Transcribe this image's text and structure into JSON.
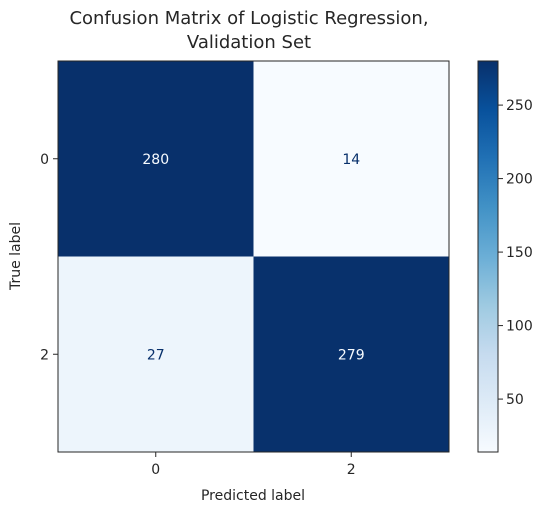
{
  "chart_data": {
    "type": "heatmap",
    "title": "Confusion Matrix of Logistic Regression,\nValidation Set",
    "title_lines": [
      "Confusion Matrix of Logistic Regression,",
      "Validation Set"
    ],
    "xlabel": "Predicted label",
    "ylabel": "True label",
    "x_categories": [
      "0",
      "2"
    ],
    "y_categories": [
      "0",
      "2"
    ],
    "values": [
      [
        280,
        14
      ],
      [
        27,
        279
      ]
    ],
    "colormap": "Blues",
    "colorbar": {
      "range": [
        14,
        280
      ],
      "ticks": [
        50,
        100,
        150,
        200,
        250
      ]
    },
    "colors": {
      "low": "#f7fbff",
      "high": "#08306b",
      "text_on_dark": "#f7fbff",
      "text_on_light": "#08306b"
    }
  }
}
